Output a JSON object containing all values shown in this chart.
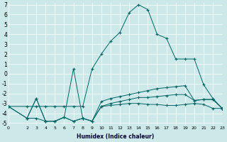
{
  "xlabel": "Humidex (Indice chaleur)",
  "background_color": "#cce8e8",
  "grid_color": "#ffffff",
  "line_color": "#006666",
  "xlim": [
    0,
    23
  ],
  "ylim": [
    -5.2,
    7.2
  ],
  "xticks": [
    0,
    2,
    3,
    4,
    5,
    6,
    7,
    8,
    9,
    10,
    11,
    12,
    13,
    14,
    15,
    16,
    17,
    18,
    19,
    20,
    21,
    22,
    23
  ],
  "yticks": [
    -5,
    -4,
    -3,
    -2,
    -1,
    0,
    1,
    2,
    3,
    4,
    5,
    6,
    7
  ],
  "lines": [
    {
      "x": [
        0,
        2,
        3,
        4,
        5,
        6,
        7,
        8,
        9,
        10,
        11,
        12,
        13,
        14,
        15,
        16,
        17,
        18,
        19,
        20,
        21,
        22,
        23
      ],
      "y": [
        -3.3,
        -4.5,
        -4.5,
        -4.8,
        -4.8,
        -4.4,
        -4.8,
        -4.5,
        -4.8,
        -3.3,
        -3.2,
        -3.1,
        -3.0,
        -3.0,
        -3.1,
        -3.1,
        -3.2,
        -3.2,
        -3.1,
        -3.0,
        -3.1,
        -3.5,
        -3.5
      ]
    },
    {
      "x": [
        0,
        2,
        3,
        4,
        5,
        6,
        7,
        8,
        9,
        10,
        11,
        12,
        13,
        14,
        15,
        16,
        17,
        18,
        19,
        20,
        21,
        22,
        23
      ],
      "y": [
        -3.3,
        -4.5,
        -2.5,
        -4.8,
        -4.8,
        -4.4,
        -4.8,
        -4.5,
        -4.8,
        -2.8,
        -2.5,
        -2.3,
        -2.1,
        -1.9,
        -1.7,
        -1.5,
        -1.4,
        -1.3,
        -1.2,
        -2.7,
        -2.6,
        -2.6,
        -3.5
      ]
    },
    {
      "x": [
        0,
        2,
        3,
        4,
        5,
        6,
        7,
        8,
        9,
        10,
        11,
        12,
        13,
        14,
        15,
        16,
        17,
        18,
        19,
        20,
        21,
        22,
        23
      ],
      "y": [
        -3.3,
        -3.3,
        -3.3,
        -3.3,
        -3.3,
        -3.3,
        -3.3,
        -3.3,
        0.5,
        2.0,
        3.3,
        4.2,
        6.2,
        7.0,
        6.5,
        4.0,
        3.6,
        1.5,
        1.5,
        1.5,
        -1.1,
        -2.5,
        -3.5
      ]
    },
    {
      "x": [
        2,
        3,
        4,
        5,
        6,
        7,
        8,
        9,
        10,
        11,
        12,
        13,
        14,
        15,
        16,
        17,
        18,
        19,
        20,
        21,
        22,
        23
      ],
      "y": [
        -4.5,
        -2.5,
        -4.8,
        -4.8,
        -4.4,
        0.5,
        -4.5,
        -4.8,
        -3.3,
        -3.0,
        -2.8,
        -2.6,
        -2.4,
        -2.4,
        -2.3,
        -2.2,
        -2.1,
        -2.1,
        -2.7,
        -2.6,
        -2.6,
        -3.5
      ]
    }
  ]
}
